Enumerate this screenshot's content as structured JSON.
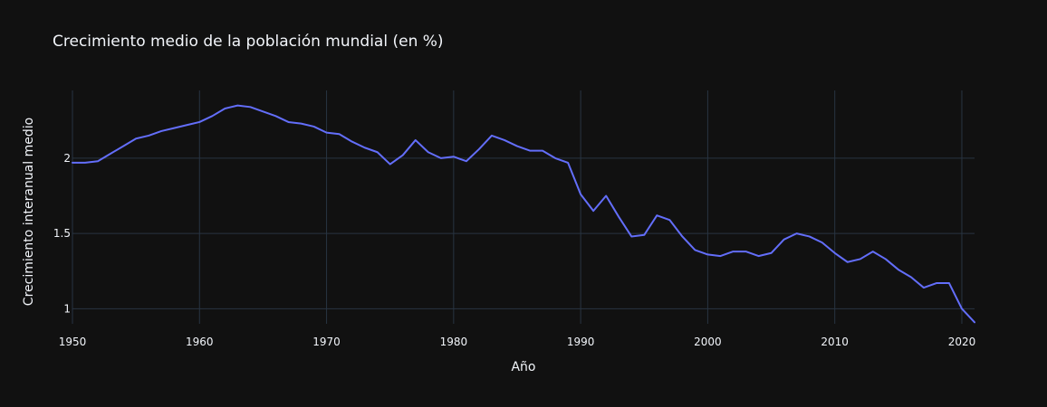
{
  "chart_data": {
    "type": "line",
    "title": "Crecimiento medio de la población mundial (en %)",
    "xlabel": "Año",
    "ylabel": "Crecimiento interanual medio",
    "xlim": [
      1950,
      2021
    ],
    "ylim": [
      0.9,
      2.45
    ],
    "x_ticks": [
      1950,
      1960,
      1970,
      1980,
      1990,
      2000,
      2010,
      2020
    ],
    "y_ticks": [
      1,
      1.5,
      2
    ],
    "y_tick_labels": [
      "1",
      "1.5",
      "2"
    ],
    "grid": true,
    "legend": "none",
    "series_color": "#636efa",
    "background_color": "#111111",
    "grid_color": "#283442",
    "series": [
      {
        "x": [
          1950,
          1951,
          1952,
          1953,
          1954,
          1955,
          1956,
          1957,
          1958,
          1959,
          1960,
          1961,
          1962,
          1963,
          1964,
          1965,
          1966,
          1967,
          1968,
          1969,
          1970,
          1971,
          1972,
          1973,
          1974,
          1975,
          1976,
          1977,
          1978,
          1979,
          1980,
          1981,
          1982,
          1983,
          1984,
          1985,
          1986,
          1987,
          1988,
          1989,
          1990,
          1991,
          1992,
          1993,
          1994,
          1995,
          1996,
          1997,
          1998,
          1999,
          2000,
          2001,
          2002,
          2003,
          2004,
          2005,
          2006,
          2007,
          2008,
          2009,
          2010,
          2011,
          2012,
          2013,
          2014,
          2015,
          2016,
          2017,
          2018,
          2019,
          2020,
          2021
        ],
        "y": [
          1.97,
          1.97,
          1.98,
          2.03,
          2.08,
          2.13,
          2.15,
          2.18,
          2.2,
          2.22,
          2.24,
          2.28,
          2.33,
          2.35,
          2.34,
          2.31,
          2.28,
          2.24,
          2.23,
          2.21,
          2.17,
          2.16,
          2.11,
          2.07,
          2.04,
          1.96,
          2.02,
          2.12,
          2.04,
          2.0,
          2.01,
          1.98,
          2.06,
          2.15,
          2.12,
          2.08,
          2.05,
          2.05,
          2.0,
          1.97,
          1.76,
          1.65,
          1.75,
          1.61,
          1.48,
          1.49,
          1.62,
          1.59,
          1.48,
          1.39,
          1.36,
          1.35,
          1.38,
          1.38,
          1.35,
          1.37,
          1.46,
          1.5,
          1.48,
          1.44,
          1.37,
          1.31,
          1.33,
          1.38,
          1.33,
          1.26,
          1.21,
          1.14,
          1.17,
          1.17,
          1.0,
          0.91
        ]
      }
    ]
  }
}
